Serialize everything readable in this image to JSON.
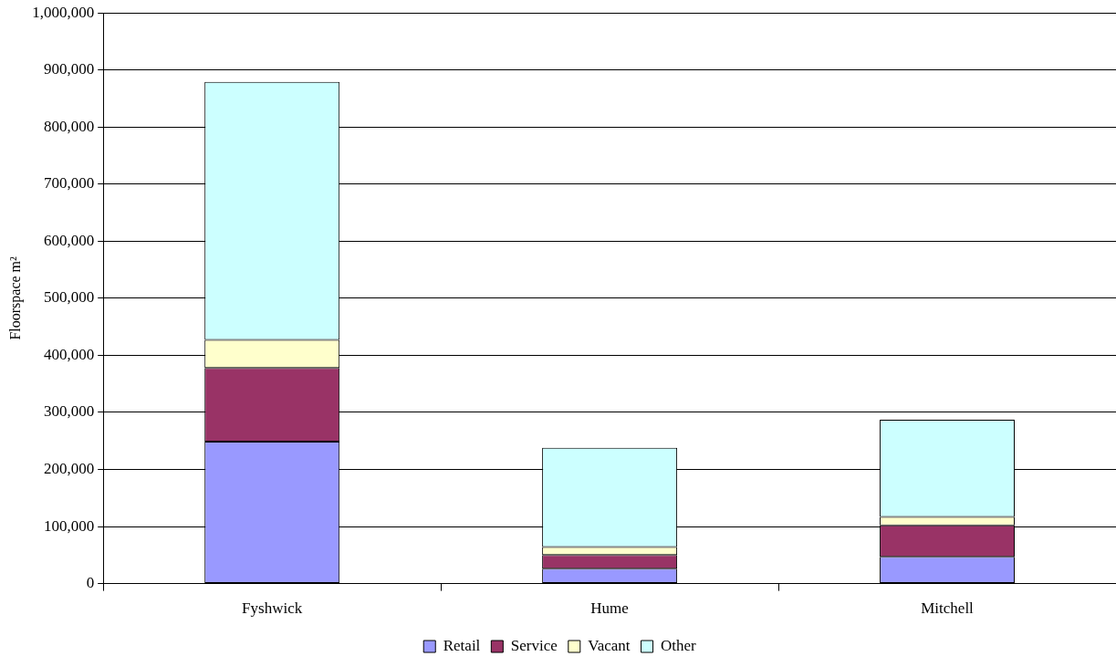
{
  "chart_data": {
    "type": "bar",
    "stacked": true,
    "ylabel": "Floorspace m²",
    "categories": [
      "Fyshwick",
      "Hume",
      "Mitchell"
    ],
    "series": [
      {
        "name": "Retail",
        "color": "#9999ff",
        "values": [
          249000,
          26000,
          47000
        ]
      },
      {
        "name": "Service",
        "color": "#993366",
        "values": [
          129000,
          24000,
          55000
        ]
      },
      {
        "name": "Vacant",
        "color": "#ffffcc",
        "values": [
          49000,
          14000,
          15000
        ]
      },
      {
        "name": "Other",
        "color": "#ccffff",
        "values": [
          452000,
          174000,
          170000
        ]
      }
    ],
    "ylim": [
      0,
      1000000
    ],
    "yticks": [
      0,
      {
        "value": 100000,
        "label": "100,000"
      },
      {
        "value": 200000,
        "label": "200,000"
      },
      {
        "value": 300000,
        "label": "300,000"
      },
      {
        "value": 400000,
        "label": "400,000"
      },
      {
        "value": 500000,
        "label": "500,000"
      },
      {
        "value": 600000,
        "label": "600,000"
      },
      {
        "value": 700000,
        "label": "700,000"
      },
      {
        "value": 800000,
        "label": "800,000"
      },
      {
        "value": 900000,
        "label": "900,000"
      },
      {
        "value": 1000000,
        "label": "1,000,000"
      }
    ],
    "grid": "y",
    "legend": "bottom"
  }
}
